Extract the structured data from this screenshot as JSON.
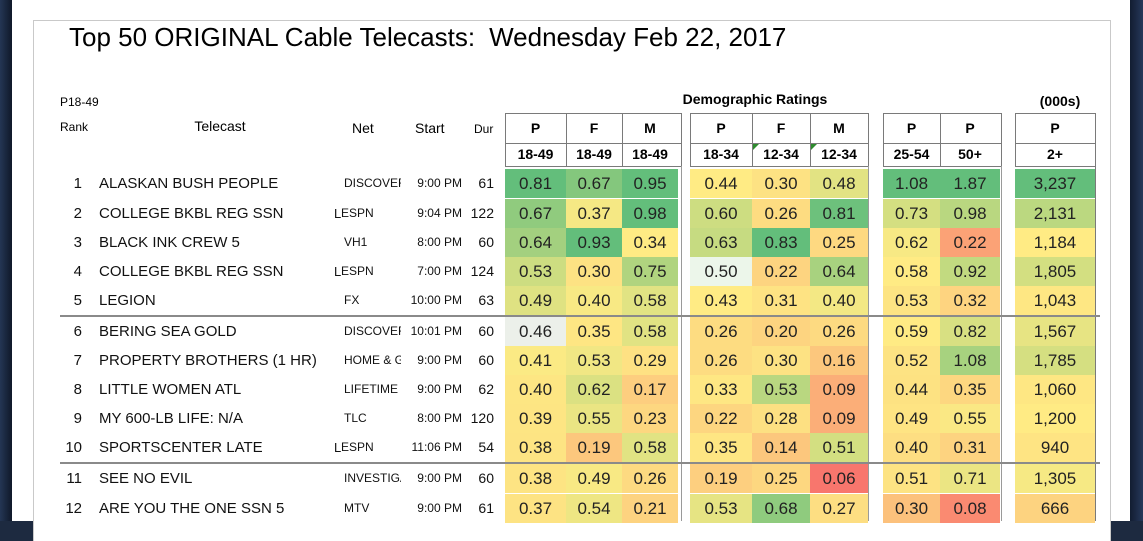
{
  "title": {
    "main": "Top 50 ORIGINAL Cable Telecasts:",
    "date": "Wednesday Feb 22, 2017"
  },
  "header": {
    "demo_label": "P18-49",
    "group_label": "Demographic Ratings",
    "units_label": "(000s)",
    "rank": "Rank",
    "telecast": "Telecast",
    "net": "Net",
    "start": "Start",
    "dur": "Dur"
  },
  "columns": [
    {
      "top": "P",
      "bottom": "18-49"
    },
    {
      "top": "F",
      "bottom": "18-49"
    },
    {
      "top": "M",
      "bottom": "18-49"
    },
    {
      "top": "P",
      "bottom": "18-34"
    },
    {
      "top": "F",
      "bottom": "12-34"
    },
    {
      "top": "M",
      "bottom": "12-34"
    },
    {
      "top": "P",
      "bottom": "25-54"
    },
    {
      "top": "P",
      "bottom": "50+"
    },
    {
      "top": "P",
      "bottom": "2+"
    }
  ],
  "rows": [
    {
      "rank": "1",
      "telecast": "ALASKAN BUSH PEOPLE",
      "l": "",
      "net": "DISCOVERY",
      "start": "9:00 PM",
      "dur": "61",
      "values": [
        "0.81",
        "0.67",
        "0.95",
        "0.44",
        "0.30",
        "0.48",
        "1.08",
        "1.87",
        "3,237"
      ],
      "colors": [
        "#63be7b",
        "#84c77d",
        "#63be7b",
        "#ffeb84",
        "#fde283",
        "#e2e383",
        "#63be7b",
        "#63be7b",
        "#63be7b"
      ]
    },
    {
      "rank": "2",
      "telecast": "COLLEGE BKBL REG SSN",
      "l": "L",
      "net": "ESPN",
      "start": "9:04 PM",
      "dur": "122",
      "values": [
        "0.67",
        "0.37",
        "0.98",
        "0.60",
        "0.26",
        "0.81",
        "0.73",
        "0.98",
        "2,131"
      ],
      "colors": [
        "#90cb7e",
        "#f5e884",
        "#63be7b",
        "#cddd81",
        "#fddc81",
        "#6dc17c",
        "#d4df81",
        "#b9d780",
        "#bbd880"
      ]
    },
    {
      "rank": "3",
      "telecast": "BLACK INK CREW 5",
      "l": "",
      "net": "VH1",
      "start": "8:00 PM",
      "dur": "60",
      "values": [
        "0.64",
        "0.93",
        "0.34",
        "0.63",
        "0.83",
        "0.25",
        "0.62",
        "0.22",
        "1,184"
      ],
      "colors": [
        "#a3d07f",
        "#63be7b",
        "#ffeb84",
        "#c6db81",
        "#63be7b",
        "#fed981",
        "#f7e984",
        "#fba276",
        "#ffeb84"
      ]
    },
    {
      "rank": "4",
      "telecast": "COLLEGE BKBL REG SSN",
      "l": "L",
      "net": "ESPN",
      "start": "7:00 PM",
      "dur": "124",
      "values": [
        "0.53",
        "0.30",
        "0.75",
        "0.50",
        "0.22",
        "0.64",
        "0.58",
        "0.92",
        "1,805"
      ],
      "colors": [
        "#cddd81",
        "#fde283",
        "#b0d47f",
        "#ecf6ea",
        "#fdd480",
        "#a8d27f",
        "#ffeb84",
        "#c2da80",
        "#d3df81"
      ]
    },
    {
      "rank": "5",
      "telecast": "LEGION",
      "l": "",
      "net": "FX",
      "start": "10:00 PM",
      "dur": "63",
      "values": [
        "0.49",
        "0.40",
        "0.58",
        "0.43",
        "0.31",
        "0.40",
        "0.53",
        "0.32",
        "1,043"
      ],
      "colors": [
        "#dfe282",
        "#f8e984",
        "#e1e383",
        "#ffeb84",
        "#fee383",
        "#f3e884",
        "#fde483",
        "#fed480",
        "#fee783"
      ]
    },
    {
      "rank": "6",
      "telecast": "BERING SEA GOLD",
      "l": "",
      "net": "DISCOVERY",
      "start": "10:01 PM",
      "dur": "60",
      "values": [
        "0.46",
        "0.35",
        "0.58",
        "0.26",
        "0.20",
        "0.26",
        "0.59",
        "0.82",
        "1,567"
      ],
      "colors": [
        "#ecf0ea",
        "#fee683",
        "#e1e383",
        "#fddc81",
        "#fdd480",
        "#fdda81",
        "#ffeb84",
        "#d8e082",
        "#e7e483"
      ]
    },
    {
      "rank": "7",
      "telecast": "PROPERTY BROTHERS (1 HR)",
      "l": "",
      "net": "HOME & GARDEN",
      "start": "9:00 PM",
      "dur": "60",
      "values": [
        "0.41",
        "0.53",
        "0.29",
        "0.26",
        "0.30",
        "0.16",
        "0.52",
        "1.08",
        "1,785"
      ],
      "colors": [
        "#fbea84",
        "#f1e784",
        "#fee183",
        "#fddc81",
        "#fde283",
        "#fcc77d",
        "#fde383",
        "#a7d27f",
        "#d5df81"
      ]
    },
    {
      "rank": "8",
      "telecast": "LITTLE WOMEN ATL",
      "l": "",
      "net": "LIFETIME",
      "start": "9:00 PM",
      "dur": "62",
      "values": [
        "0.40",
        "0.62",
        "0.17",
        "0.33",
        "0.53",
        "0.09",
        "0.44",
        "0.35",
        "1,060"
      ],
      "colors": [
        "#fde683",
        "#dbe182",
        "#fdce7f",
        "#fee783",
        "#b9d780",
        "#fbae78",
        "#fde282",
        "#fdd780",
        "#fee783"
      ]
    },
    {
      "rank": "9",
      "telecast": "MY 600-LB LIFE: N/A",
      "l": "",
      "net": "TLC",
      "start": "8:00 PM",
      "dur": "120",
      "values": [
        "0.39",
        "0.55",
        "0.23",
        "0.22",
        "0.28",
        "0.09",
        "0.49",
        "0.55",
        "1,200"
      ],
      "colors": [
        "#fde583",
        "#eae583",
        "#fdd780",
        "#fdd680",
        "#fde082",
        "#fbae78",
        "#fee483",
        "#fae884",
        "#ffeb84"
      ]
    },
    {
      "rank": "10",
      "telecast": "SPORTSCENTER LATE",
      "l": "L",
      "net": "ESPN",
      "start": "11:06 PM",
      "dur": "54",
      "values": [
        "0.38",
        "0.19",
        "0.58",
        "0.35",
        "0.14",
        "0.51",
        "0.40",
        "0.31",
        "940"
      ],
      "colors": [
        "#fde483",
        "#fcc77d",
        "#e1e383",
        "#fee683",
        "#fcc77d",
        "#d3df81",
        "#fdde82",
        "#fdd380",
        "#fee483"
      ]
    },
    {
      "rank": "11",
      "telecast": "SEE NO EVIL",
      "l": "",
      "net": "INVESTIGATION DISCOVERY",
      "start": "9:00 PM",
      "dur": "60",
      "values": [
        "0.38",
        "0.49",
        "0.26",
        "0.19",
        "0.25",
        "0.06",
        "0.51",
        "0.71",
        "1,305"
      ],
      "colors": [
        "#fde483",
        "#f8e984",
        "#fdda81",
        "#fdcf7f",
        "#fdd780",
        "#f8766d",
        "#fde383",
        "#ebe583",
        "#f6e984"
      ]
    },
    {
      "rank": "12",
      "telecast": "ARE YOU THE ONE SSN 5",
      "l": "",
      "net": "MTV",
      "start": "9:00 PM",
      "dur": "61",
      "values": [
        "0.37",
        "0.54",
        "0.21",
        "0.53",
        "0.68",
        "0.27",
        "0.30",
        "0.08",
        "666"
      ],
      "colors": [
        "#fde383",
        "#eee683",
        "#fdd380",
        "#e6e483",
        "#8fcb7e",
        "#fdde82",
        "#fcc17c",
        "#fa8a71",
        "#fdd380"
      ]
    }
  ]
}
